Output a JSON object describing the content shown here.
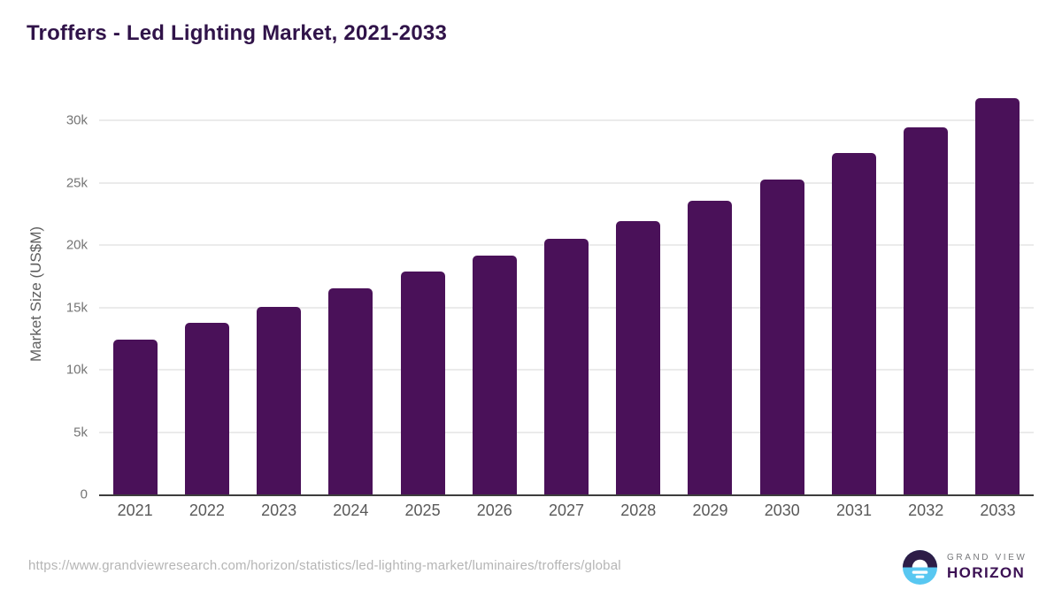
{
  "title": "Troffers - Led Lighting Market, 2021-2033",
  "chart_data": {
    "type": "bar",
    "categories": [
      "2021",
      "2022",
      "2023",
      "2024",
      "2025",
      "2026",
      "2027",
      "2028",
      "2029",
      "2030",
      "2031",
      "2032",
      "2033"
    ],
    "values": [
      12400,
      13750,
      15050,
      16500,
      17850,
      19150,
      20500,
      21950,
      23550,
      25250,
      27350,
      29400,
      31750
    ],
    "title": "Troffers - Led Lighting Market, 2021-2033",
    "xlabel": "",
    "ylabel": "Market Size (US$M)",
    "ylim": [
      0,
      32200
    ],
    "yticks": [
      0,
      5000,
      10000,
      15000,
      20000,
      25000,
      30000
    ],
    "ytick_labels": [
      "0",
      "5k",
      "10k",
      "15k",
      "20k",
      "25k",
      "30k"
    ],
    "grid": true,
    "legend": false,
    "bar_color": "#4A1159"
  },
  "footer": {
    "source_url": "https://www.grandviewresearch.com/horizon/statistics/led-lighting-market/luminaires/troffers/global",
    "logo": {
      "line1": "GRAND VIEW",
      "line2": "HORIZON"
    }
  },
  "colors": {
    "bar": "#4A1159",
    "title_text": "#301349",
    "logo_dark": "#2D1D47",
    "logo_blue": "#58C7F1",
    "logo_white": "#FFFFFF",
    "axis_line": "#3D3D3D",
    "gridline": "#EBEBEB"
  }
}
